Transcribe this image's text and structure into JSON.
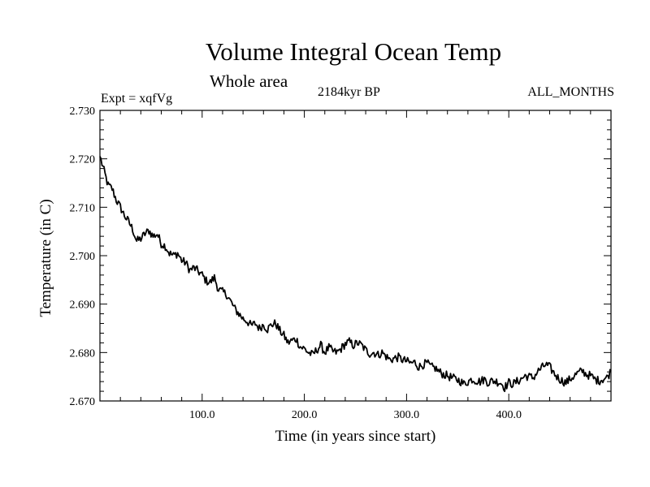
{
  "chart_data": {
    "type": "line",
    "title": "Volume Integral Ocean Temp",
    "subtitle": "Whole area",
    "left_label": "Expt = xqfVg",
    "center_label": "2184kyr BP",
    "right_label": "ALL_MONTHS",
    "xlabel": "Time (in years since start)",
    "ylabel": "Temperature (in C)",
    "xlim": [
      0,
      500
    ],
    "ylim": [
      2.67,
      2.73
    ],
    "x_ticks": [
      {
        "value": 100,
        "label": "100.0"
      },
      {
        "value": 200,
        "label": "200.0"
      },
      {
        "value": 300,
        "label": "300.0"
      },
      {
        "value": 400,
        "label": "400.0"
      }
    ],
    "y_ticks": [
      {
        "value": 2.67,
        "label": "2.670"
      },
      {
        "value": 2.68,
        "label": "2.680"
      },
      {
        "value": 2.69,
        "label": "2.690"
      },
      {
        "value": 2.7,
        "label": "2.700"
      },
      {
        "value": 2.71,
        "label": "2.710"
      },
      {
        "value": 2.72,
        "label": "2.720"
      },
      {
        "value": 2.73,
        "label": "2.730"
      }
    ],
    "series": [
      {
        "name": "Volume Integral Ocean Temp",
        "color": "#000000",
        "x": [
          0,
          4,
          8,
          12,
          16,
          20,
          24,
          28,
          32,
          36,
          40,
          44,
          48,
          52,
          56,
          60,
          64,
          68,
          72,
          76,
          80,
          84,
          88,
          92,
          96,
          100,
          104,
          108,
          112,
          116,
          120,
          124,
          128,
          132,
          136,
          140,
          144,
          148,
          152,
          156,
          160,
          164,
          168,
          172,
          176,
          180,
          184,
          188,
          192,
          196,
          200,
          204,
          208,
          212,
          216,
          220,
          224,
          228,
          232,
          236,
          240,
          244,
          248,
          252,
          256,
          260,
          264,
          268,
          272,
          276,
          280,
          284,
          288,
          292,
          296,
          300,
          304,
          308,
          312,
          316,
          320,
          324,
          328,
          332,
          336,
          340,
          344,
          348,
          352,
          356,
          360,
          364,
          368,
          372,
          376,
          380,
          384,
          388,
          392,
          396,
          400,
          404,
          408,
          412,
          416,
          420,
          424,
          428,
          432,
          436,
          440,
          444,
          448,
          452,
          456,
          460,
          464,
          468,
          472,
          476,
          480,
          484,
          488,
          492,
          496,
          500
        ],
        "values": [
          2.7205,
          2.7175,
          2.7145,
          2.7138,
          2.7115,
          2.71,
          2.7083,
          2.707,
          2.7055,
          2.703,
          2.7035,
          2.7045,
          2.7052,
          2.704,
          2.7045,
          2.7025,
          2.702,
          2.7005,
          2.7,
          2.7005,
          2.699,
          2.6985,
          2.697,
          2.6975,
          2.6968,
          2.696,
          2.6948,
          2.6945,
          2.6955,
          2.693,
          2.6925,
          2.692,
          2.6905,
          2.689,
          2.688,
          2.687,
          2.6865,
          2.6855,
          2.686,
          2.685,
          2.6858,
          2.6848,
          2.6858,
          2.686,
          2.6845,
          2.6835,
          2.682,
          2.6825,
          2.6828,
          2.6812,
          2.6808,
          2.68,
          2.6795,
          2.6805,
          2.6815,
          2.68,
          2.681,
          2.6802,
          2.68,
          2.6808,
          2.6818,
          2.6822,
          2.6815,
          2.682,
          2.6815,
          2.6805,
          2.6798,
          2.68,
          2.6795,
          2.68,
          2.6792,
          2.6785,
          2.6788,
          2.679,
          2.6785,
          2.6782,
          2.6778,
          2.678,
          2.677,
          2.6775,
          2.6778,
          2.677,
          2.6768,
          2.676,
          2.6755,
          2.6752,
          2.6748,
          2.6745,
          2.6742,
          2.6735,
          2.674,
          2.6745,
          2.6742,
          2.674,
          2.6745,
          2.6738,
          2.6742,
          2.674,
          2.6738,
          2.6728,
          2.6738,
          2.6735,
          2.674,
          2.6745,
          2.6752,
          2.675,
          2.6748,
          2.676,
          2.6768,
          2.6775,
          2.677,
          2.6758,
          2.6748,
          2.6742,
          2.6738,
          2.6745,
          2.6752,
          2.6758,
          2.6762,
          2.6755,
          2.6752,
          2.6745,
          2.6742,
          2.6745,
          2.6748,
          2.6762
        ],
        "noise_amplitude": 0.0018
      }
    ]
  }
}
